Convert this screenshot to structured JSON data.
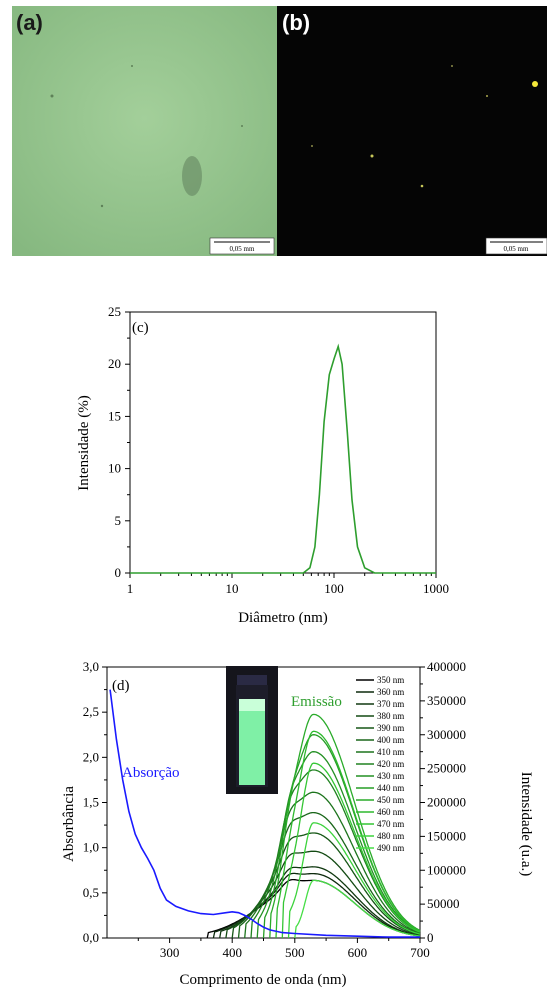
{
  "micrographs": {
    "a": {
      "label": "(a)",
      "scale_bar": "0,05 mm"
    },
    "b": {
      "label": "(b)",
      "scale_bar": "0,05 mm"
    }
  },
  "chart_data": [
    {
      "type": "line",
      "panel_label": "(c)",
      "xlabel": "Diâmetro (nm)",
      "ylabel": "Intensidade (%)",
      "xscale": "log",
      "xlim": [
        1,
        1000
      ],
      "ylim": [
        0,
        25
      ],
      "xticks": [
        "1",
        "10",
        "100",
        "1000"
      ],
      "yticks": [
        "0",
        "5",
        "10",
        "15",
        "20",
        "25"
      ],
      "series": [
        {
          "color": "#2e9e2e",
          "x": [
            1,
            50,
            58,
            65,
            72,
            80,
            90,
            100,
            110,
            120,
            135,
            150,
            170,
            200,
            250,
            1000
          ],
          "y": [
            0,
            0,
            0.5,
            2.5,
            7.5,
            14.5,
            19,
            20.5,
            21.7,
            20,
            13.5,
            7,
            2.5,
            0.5,
            0,
            0
          ]
        }
      ]
    },
    {
      "type": "line",
      "panel_label": "(d)",
      "xlabel": "Comprimento de onda (nm)",
      "ylabel": "Absorbância",
      "ylabel_right": "Intensidade (u.a.)",
      "xlim": [
        200,
        700
      ],
      "ylim": [
        0,
        3.0
      ],
      "ylim_right": [
        0,
        400000
      ],
      "xticks": [
        "300",
        "400",
        "500",
        "600",
        "700"
      ],
      "yticks": [
        "0,0",
        "0,5",
        "1,0",
        "1,5",
        "2,0",
        "2,5",
        "3,0"
      ],
      "yticks_right": [
        "0",
        "50000",
        "100000",
        "150000",
        "200000",
        "250000",
        "300000",
        "350000",
        "400000"
      ],
      "annotations": {
        "absorption": "Absorção",
        "emission": "Emissão"
      },
      "absorption": {
        "color": "#1a1aff",
        "x": [
          205,
          215,
          225,
          235,
          245,
          255,
          265,
          275,
          285,
          295,
          310,
          330,
          350,
          370,
          390,
          400,
          410,
          420,
          430,
          440,
          450,
          460,
          480,
          500,
          550,
          600,
          650,
          700
        ],
        "y": [
          2.75,
          2.2,
          1.75,
          1.4,
          1.15,
          1.0,
          0.88,
          0.75,
          0.55,
          0.42,
          0.35,
          0.3,
          0.27,
          0.26,
          0.28,
          0.29,
          0.28,
          0.25,
          0.21,
          0.16,
          0.12,
          0.09,
          0.06,
          0.05,
          0.03,
          0.02,
          0.01,
          0.01
        ]
      },
      "emission": {
        "peak_nm": 530,
        "end_nm": 700,
        "series": [
          {
            "name": "350 nm",
            "start": 360,
            "peak": 85000,
            "color": "#000000"
          },
          {
            "name": "360 nm",
            "start": 370,
            "peak": 95000,
            "color": "#0d2a0d"
          },
          {
            "name": "370 nm",
            "start": 380,
            "peak": 105000,
            "color": "#103810"
          },
          {
            "name": "380 nm",
            "start": 390,
            "peak": 128000,
            "color": "#134a13"
          },
          {
            "name": "390 nm",
            "start": 400,
            "peak": 155000,
            "color": "#165716"
          },
          {
            "name": "400 nm",
            "start": 410,
            "peak": 185000,
            "color": "#1a661a"
          },
          {
            "name": "410 nm",
            "start": 420,
            "peak": 215000,
            "color": "#1d741d"
          },
          {
            "name": "420 nm",
            "start": 430,
            "peak": 248000,
            "color": "#208220"
          },
          {
            "name": "430 nm",
            "start": 440,
            "peak": 275000,
            "color": "#239023"
          },
          {
            "name": "440 nm",
            "start": 450,
            "peak": 300000,
            "color": "#269e26"
          },
          {
            "name": "450 nm",
            "start": 460,
            "peak": 330000,
            "color": "#2aab2a"
          },
          {
            "name": "460 nm",
            "start": 470,
            "peak": 305000,
            "color": "#2eb92e"
          },
          {
            "name": "470 nm",
            "start": 480,
            "peak": 258000,
            "color": "#34c634"
          },
          {
            "name": "480 nm",
            "start": 490,
            "peak": 170000,
            "color": "#3cd33c"
          },
          {
            "name": "490 nm",
            "start": 500,
            "peak": 85000,
            "color": "#46de46"
          }
        ]
      }
    }
  ]
}
